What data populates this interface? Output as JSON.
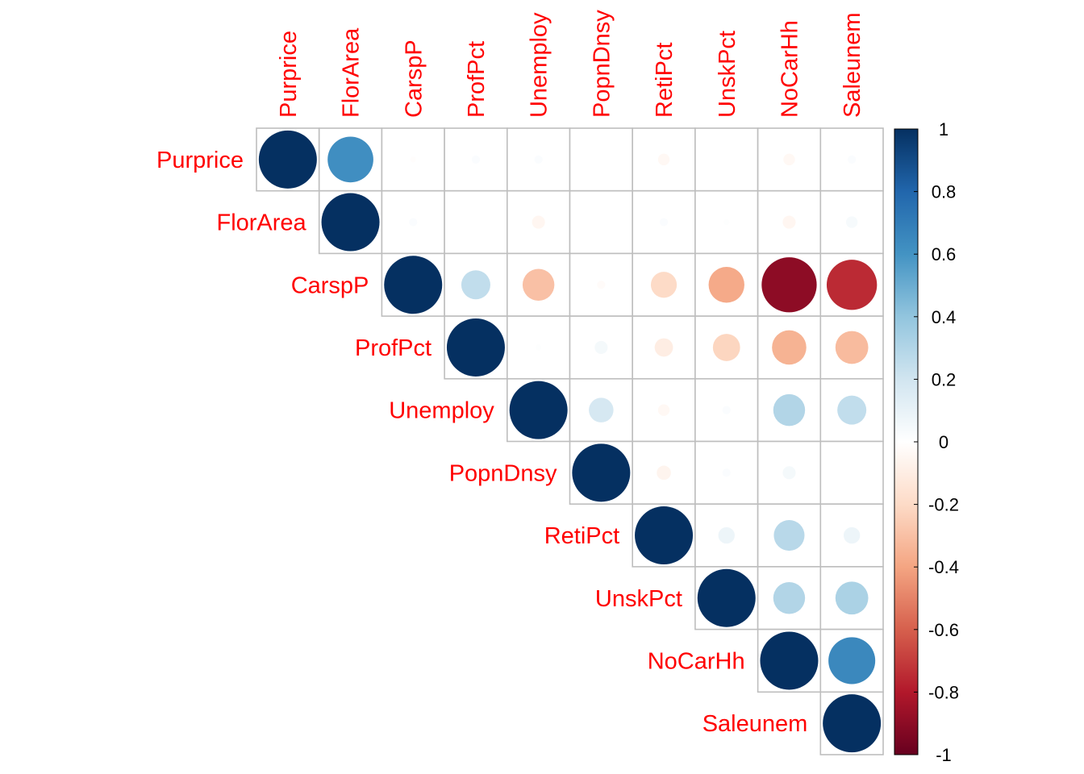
{
  "chart_data": {
    "type": "heatmap",
    "style": "upper-triangle circle correlation plot",
    "variables": [
      "Purprice",
      "FlorArea",
      "CarspP",
      "ProfPct",
      "Unemploy",
      "PopnDnsy",
      "RetiPct",
      "UnskPct",
      "NoCarHh",
      "Saleunem"
    ],
    "matrix": [
      [
        1,
        0.62,
        -0.01,
        0.02,
        0.02,
        null,
        -0.04,
        null,
        -0.04,
        0.02
      ],
      [
        null,
        1,
        0.02,
        null,
        -0.05,
        null,
        0.02,
        0.01,
        -0.05,
        0.04
      ],
      [
        null,
        null,
        1,
        0.25,
        -0.3,
        -0.02,
        -0.2,
        -0.38,
        -0.9,
        -0.75
      ],
      [
        null,
        null,
        null,
        1,
        0.01,
        0.05,
        -0.1,
        -0.22,
        -0.35,
        -0.32
      ],
      [
        null,
        null,
        null,
        null,
        1,
        0.18,
        -0.04,
        0.02,
        0.3,
        0.25
      ],
      [
        null,
        null,
        null,
        null,
        null,
        1,
        -0.06,
        0.02,
        0.05,
        null
      ],
      [
        null,
        null,
        null,
        null,
        null,
        null,
        1,
        0.08,
        0.28,
        0.08
      ],
      [
        null,
        null,
        null,
        null,
        null,
        null,
        null,
        1,
        0.3,
        0.32
      ],
      [
        null,
        null,
        null,
        null,
        null,
        null,
        null,
        null,
        1,
        0.65
      ],
      [
        null,
        null,
        null,
        null,
        null,
        null,
        null,
        null,
        null,
        1
      ]
    ],
    "label_color": "#FF0000",
    "grid": true,
    "colorbar": {
      "range": [
        -1,
        1
      ],
      "tick_labels": [
        "1",
        "0.8",
        "0.6",
        "0.4",
        "0.2",
        "0",
        "-0.2",
        "-0.4",
        "-0.6",
        "-0.8",
        "-1"
      ],
      "colors": [
        "#67001F",
        "#B2182B",
        "#D6604D",
        "#F4A582",
        "#FDDBC7",
        "#FFFFFF",
        "#D1E5F0",
        "#92C5DE",
        "#4393C3",
        "#2166AC",
        "#053061"
      ],
      "placement": "right"
    }
  }
}
